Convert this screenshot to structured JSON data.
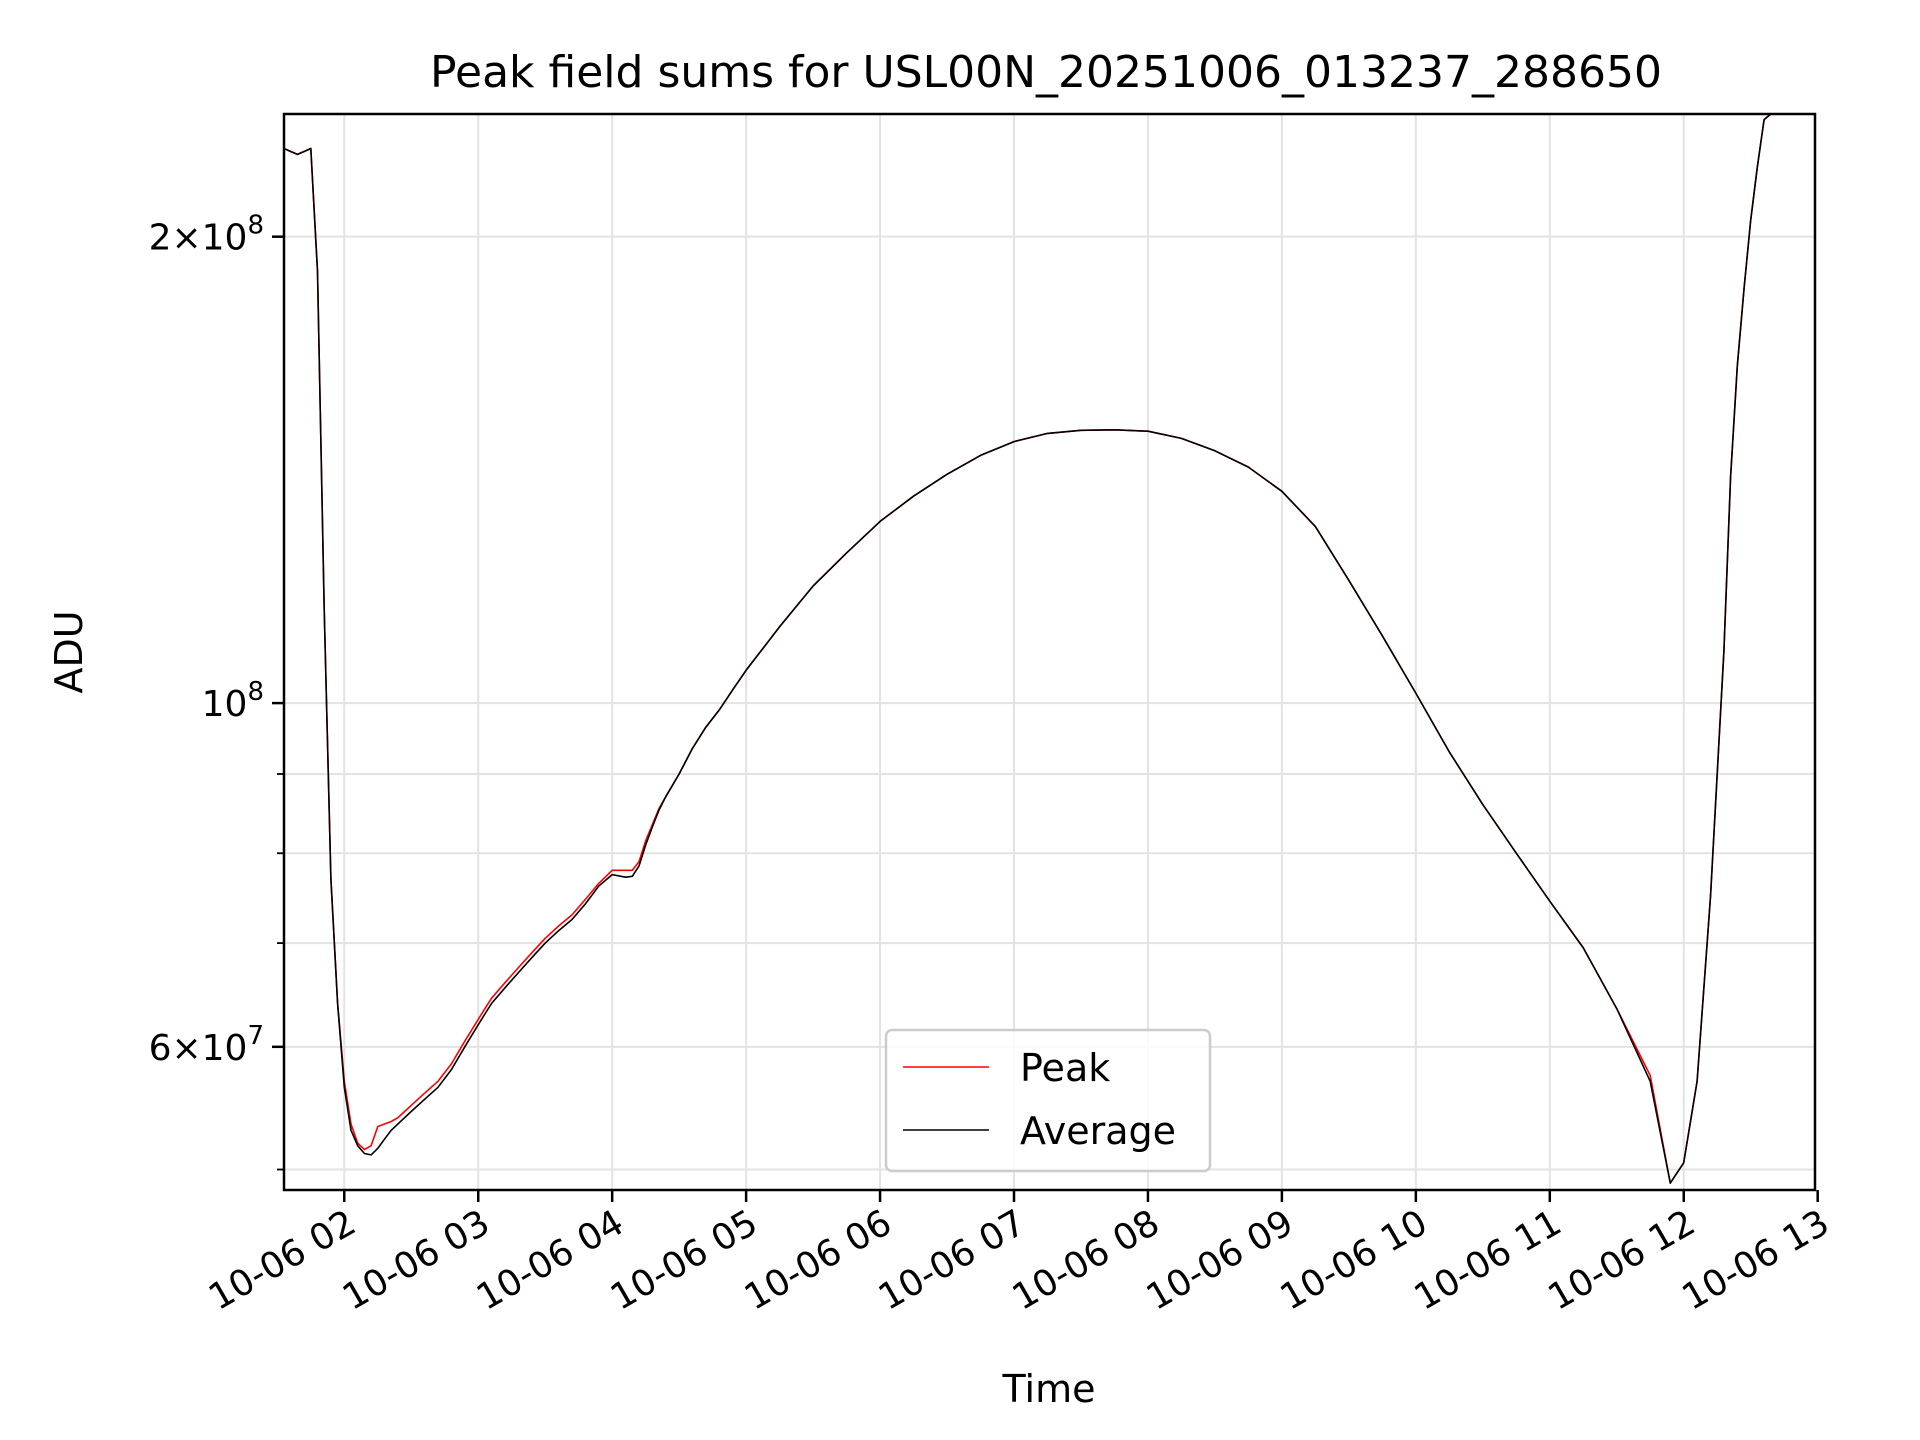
{
  "chart_data": {
    "type": "line",
    "title": "Peak field sums for USL00N_20251006_013237_288650",
    "xlabel": "Time",
    "ylabel": "ADU",
    "x_ticks": [
      "10-06 02",
      "10-06 03",
      "10-06 04",
      "10-06 05",
      "10-06 06",
      "10-06 07",
      "10-06 08",
      "10-06 09",
      "10-06 10",
      "10-06 11",
      "10-06 12",
      "10-06 13"
    ],
    "x_tick_hours": [
      2,
      3,
      4,
      5,
      6,
      7,
      8,
      9,
      10,
      11,
      12,
      13
    ],
    "xlim_hours": [
      1.55,
      12.98
    ],
    "ylim": [
      48500000,
      240000000
    ],
    "yscale": "log",
    "y_major_ticks": [
      {
        "value": 200000000,
        "mant": "2",
        "exp": "8"
      },
      {
        "value": 100000000,
        "mant": "",
        "exp": "8"
      },
      {
        "value": 60000000,
        "mant": "6",
        "exp": "7"
      }
    ],
    "y_minor_ticks": [
      50000000,
      70000000,
      80000000,
      90000000
    ],
    "grid": true,
    "legend_position": "lower-center",
    "x_hours": [
      1.55,
      1.6,
      1.65,
      1.7,
      1.75,
      1.8,
      1.85,
      1.9,
      1.95,
      2.0,
      2.05,
      2.1,
      2.15,
      2.2,
      2.25,
      2.3,
      2.35,
      2.4,
      2.45,
      2.5,
      2.6,
      2.7,
      2.8,
      2.9,
      3.0,
      3.05,
      3.1,
      3.2,
      3.3,
      3.4,
      3.5,
      3.6,
      3.7,
      3.8,
      3.9,
      4.0,
      4.1,
      4.15,
      4.2,
      4.25,
      4.3,
      4.35,
      4.4,
      4.5,
      4.6,
      4.7,
      4.8,
      4.9,
      5.0,
      5.25,
      5.5,
      5.75,
      6.0,
      6.25,
      6.5,
      6.75,
      7.0,
      7.25,
      7.5,
      7.75,
      8.0,
      8.25,
      8.5,
      8.75,
      9.0,
      9.25,
      9.5,
      9.75,
      10.0,
      10.25,
      10.5,
      10.75,
      11.0,
      11.25,
      11.5,
      11.75,
      11.9,
      12.0,
      12.1,
      12.2,
      12.3,
      12.35,
      12.4,
      12.45,
      12.5,
      12.55,
      12.6,
      12.65,
      12.7,
      12.75,
      12.8,
      12.85,
      12.9
    ],
    "series": [
      {
        "name": "Peak",
        "color": "#ff0000",
        "values": [
          228000000,
          227000000,
          226000000,
          227000000,
          228000000,
          190000000,
          115000000,
          77000000,
          64000000,
          57000000,
          53500000,
          52000000,
          51500000,
          51800000,
          53300000,
          53500000,
          53700000,
          54000000,
          54500000,
          55000000,
          56000000,
          57000000,
          58500000,
          60500000,
          62500000,
          63500000,
          64500000,
          66000000,
          67500000,
          69000000,
          70500000,
          71800000,
          73000000,
          74700000,
          76500000,
          78000000,
          78000000,
          78000000,
          79000000,
          81500000,
          83500000,
          85500000,
          87000000,
          90000000,
          93500000,
          96500000,
          99000000,
          102000000,
          105000000,
          112000000,
          119000000,
          125000000,
          131000000,
          136000000,
          140500000,
          144500000,
          147500000,
          149300000,
          150000000,
          150100000,
          149800000,
          148200000,
          145500000,
          142000000,
          137000000,
          130000000,
          120000000,
          110500000,
          101500000,
          93000000,
          86000000,
          80000000,
          74500000,
          69500000,
          63500000,
          57500000,
          49000000,
          50500000,
          57000000,
          75000000,
          108000000,
          140000000,
          165000000,
          185000000,
          205000000,
          222000000,
          238000000,
          240000000,
          240000000,
          240000000,
          240000000,
          240000000,
          240000000
        ]
      },
      {
        "name": "Average",
        "color": "#000000",
        "values": [
          228000000,
          227000000,
          226000000,
          227000000,
          228000000,
          190000000,
          115000000,
          77000000,
          64000000,
          56500000,
          53000000,
          51800000,
          51200000,
          51100000,
          51600000,
          52300000,
          53000000,
          53500000,
          54000000,
          54500000,
          55500000,
          56500000,
          58000000,
          60000000,
          62000000,
          63000000,
          64000000,
          65500000,
          67000000,
          68500000,
          70000000,
          71300000,
          72500000,
          74200000,
          76200000,
          77500000,
          77200000,
          77300000,
          78500000,
          81000000,
          83200000,
          85300000,
          87000000,
          90000000,
          93500000,
          96500000,
          99000000,
          102000000,
          105000000,
          112000000,
          119000000,
          125000000,
          131000000,
          136000000,
          140500000,
          144500000,
          147500000,
          149300000,
          150000000,
          150100000,
          149800000,
          148200000,
          145500000,
          142000000,
          137000000,
          130000000,
          120000000,
          110500000,
          101500000,
          93000000,
          86000000,
          80000000,
          74500000,
          69500000,
          63500000,
          57000000,
          49000000,
          50500000,
          57000000,
          75000000,
          108000000,
          140000000,
          165000000,
          185000000,
          205000000,
          222000000,
          238000000,
          240000000,
          240000000,
          240000000,
          240000000,
          240000000,
          240000000
        ]
      }
    ]
  }
}
